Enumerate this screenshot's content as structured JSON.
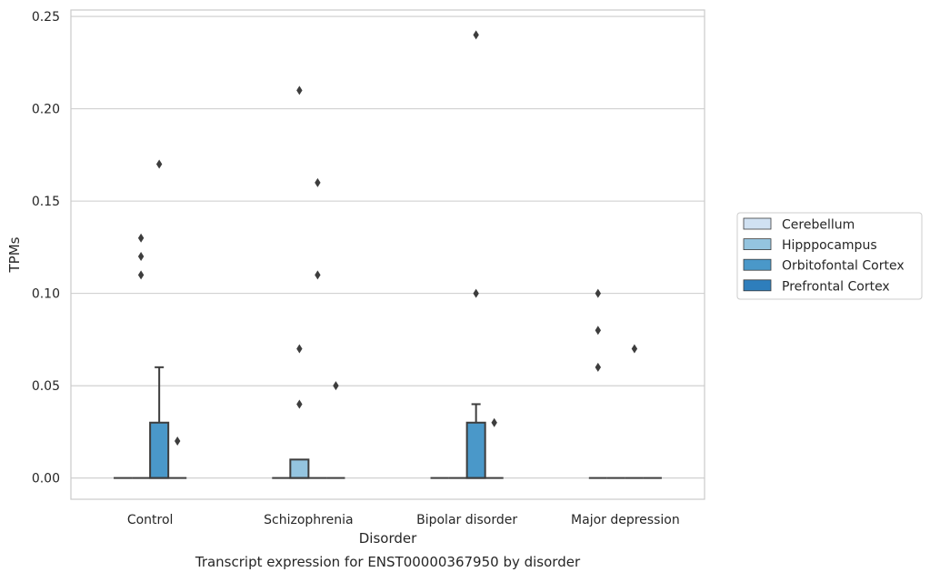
{
  "chart_data": {
    "type": "box",
    "title": "",
    "caption": "Transcript expression for ENST00000367950 by disorder",
    "xlabel": "Disorder",
    "ylabel": "TPMs",
    "ylim": [
      -0.0115,
      0.2535
    ],
    "yticks": [
      0.0,
      0.05,
      0.1,
      0.15,
      0.2,
      0.25
    ],
    "ytick_labels": [
      "0.00",
      "0.05",
      "0.10",
      "0.15",
      "0.20",
      "0.25"
    ],
    "grid": "horizontal",
    "legend_position": "right",
    "categories": [
      "Control",
      "Schizophrenia",
      "Bipolar disorder",
      "Major depression"
    ],
    "series": [
      {
        "name": "Cerebellum",
        "color": "#d0e1f2",
        "boxes": [
          {
            "q1": 0,
            "median": 0,
            "q3": 0,
            "whisker_low": 0,
            "whisker_high": 0,
            "outliers": []
          },
          {
            "q1": 0,
            "median": 0,
            "q3": 0,
            "whisker_low": 0,
            "whisker_high": 0,
            "outliers": []
          },
          {
            "q1": 0,
            "median": 0,
            "q3": 0,
            "whisker_low": 0,
            "whisker_high": 0,
            "outliers": []
          },
          {
            "q1": 0,
            "median": 0,
            "q3": 0,
            "whisker_low": 0,
            "whisker_high": 0,
            "outliers": [
              0.06,
              0.08,
              0.1
            ]
          }
        ]
      },
      {
        "name": "Hipppocampus",
        "color": "#94c4df",
        "boxes": [
          {
            "q1": 0,
            "median": 0,
            "q3": 0,
            "whisker_low": 0,
            "whisker_high": 0,
            "outliers": [
              0.11,
              0.12,
              0.13
            ]
          },
          {
            "q1": 0,
            "median": 0,
            "q3": 0.01,
            "whisker_low": 0,
            "whisker_high": 0.01,
            "outliers": [
              0.04,
              0.07,
              0.21
            ]
          },
          {
            "q1": 0,
            "median": 0,
            "q3": 0,
            "whisker_low": 0,
            "whisker_high": 0,
            "outliers": []
          },
          {
            "q1": 0,
            "median": 0,
            "q3": 0,
            "whisker_low": 0,
            "whisker_high": 0,
            "outliers": []
          }
        ]
      },
      {
        "name": "Orbitofontal Cortex",
        "color": "#4a98c9",
        "boxes": [
          {
            "q1": 0,
            "median": 0,
            "q3": 0.03,
            "whisker_low": 0,
            "whisker_high": 0.06,
            "outliers": [
              0.17
            ]
          },
          {
            "q1": 0,
            "median": 0,
            "q3": 0,
            "whisker_low": 0,
            "whisker_high": 0,
            "outliers": [
              0.11,
              0.16
            ]
          },
          {
            "q1": 0,
            "median": 0,
            "q3": 0.03,
            "whisker_low": 0,
            "whisker_high": 0.04,
            "outliers": [
              0.1,
              0.24
            ]
          },
          {
            "q1": 0,
            "median": 0,
            "q3": 0,
            "whisker_low": 0,
            "whisker_high": 0,
            "outliers": [
              0.07
            ]
          }
        ]
      },
      {
        "name": "Prefrontal Cortex",
        "color": "#2e7ebc",
        "boxes": [
          {
            "q1": 0,
            "median": 0,
            "q3": 0,
            "whisker_low": 0,
            "whisker_high": 0,
            "outliers": [
              0.02
            ]
          },
          {
            "q1": 0,
            "median": 0,
            "q3": 0,
            "whisker_low": 0,
            "whisker_high": 0,
            "outliers": [
              0.05
            ]
          },
          {
            "q1": 0,
            "median": 0,
            "q3": 0,
            "whisker_low": 0,
            "whisker_high": 0,
            "outliers": [
              0.03
            ]
          },
          {
            "q1": 0,
            "median": 0,
            "q3": 0,
            "whisker_low": 0,
            "whisker_high": 0,
            "outliers": []
          }
        ]
      }
    ]
  }
}
